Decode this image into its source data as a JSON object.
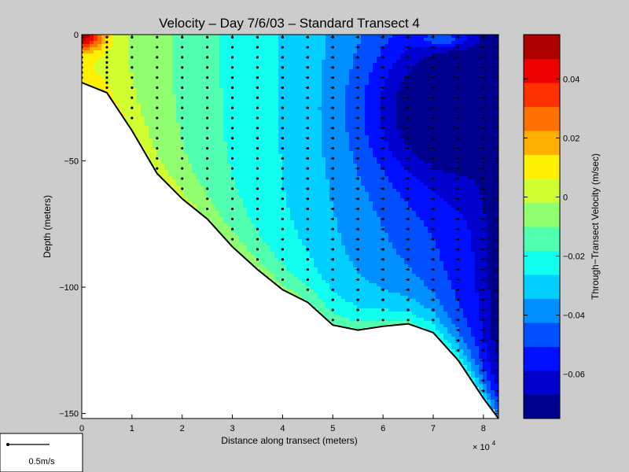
{
  "chart_data": {
    "type": "heatmap",
    "title": "Velocity – Day 7/6/03 – Standard Transect 4",
    "xlabel": "Distance along transect (meters)",
    "ylabel": "Depth (meters)",
    "x_multiplier_label": "× 10",
    "x_multiplier_exp": "4",
    "xlim": [
      0,
      83000
    ],
    "ylim": [
      -152,
      0
    ],
    "x_ticks": [
      {
        "v": 0,
        "label": "0"
      },
      {
        "v": 10000,
        "label": "1"
      },
      {
        "v": 20000,
        "label": "2"
      },
      {
        "v": 30000,
        "label": "3"
      },
      {
        "v": 40000,
        "label": "4"
      },
      {
        "v": 50000,
        "label": "5"
      },
      {
        "v": 60000,
        "label": "6"
      },
      {
        "v": 70000,
        "label": "7"
      },
      {
        "v": 80000,
        "label": "8"
      }
    ],
    "y_ticks": [
      {
        "v": 0,
        "label": "0"
      },
      {
        "v": -50,
        "label": "−50"
      },
      {
        "v": -100,
        "label": "−100"
      },
      {
        "v": -150,
        "label": "−150"
      }
    ],
    "bottom_profile": [
      [
        0,
        -19
      ],
      [
        5000,
        -23
      ],
      [
        10000,
        -38
      ],
      [
        15000,
        -55
      ],
      [
        20000,
        -65
      ],
      [
        25000,
        -73
      ],
      [
        30000,
        -84
      ],
      [
        35000,
        -93
      ],
      [
        40000,
        -101
      ],
      [
        45000,
        -106
      ],
      [
        50000,
        -115
      ],
      [
        55000,
        -117
      ],
      [
        60000,
        -115.5
      ],
      [
        65000,
        -114.5
      ],
      [
        70000,
        -118
      ],
      [
        75000,
        -129
      ],
      [
        80000,
        -144
      ],
      [
        83000,
        -152
      ]
    ],
    "station_x": [
      0,
      5000,
      10000,
      15000,
      20000,
      25000,
      30000,
      35000,
      40000,
      45000,
      50000,
      55000,
      60000,
      65000,
      70000,
      75000,
      80000,
      83000
    ],
    "colorbar": {
      "label": "Through−Transect Velocity (m/sec)",
      "range": [
        -0.075,
        0.055
      ],
      "ticks": [
        {
          "v": 0.04,
          "label": "0.04"
        },
        {
          "v": 0.02,
          "label": "0.02"
        },
        {
          "v": 0,
          "label": "0"
        },
        {
          "v": -0.02,
          "label": "−0.02"
        },
        {
          "v": -0.04,
          "label": "−0.04"
        },
        {
          "v": -0.06,
          "label": "−0.06"
        }
      ],
      "colors": [
        "#00008f",
        "#0000cf",
        "#0010ff",
        "#0050ff",
        "#0090ff",
        "#00cfff",
        "#10ffef",
        "#50ffaf",
        "#8fff70",
        "#cfff30",
        "#ffef00",
        "#ffaf00",
        "#ff7000",
        "#ff3000",
        "#ef0000",
        "#af0000"
      ]
    },
    "scale_arrow_label": "0.5m/s",
    "grid": false
  }
}
